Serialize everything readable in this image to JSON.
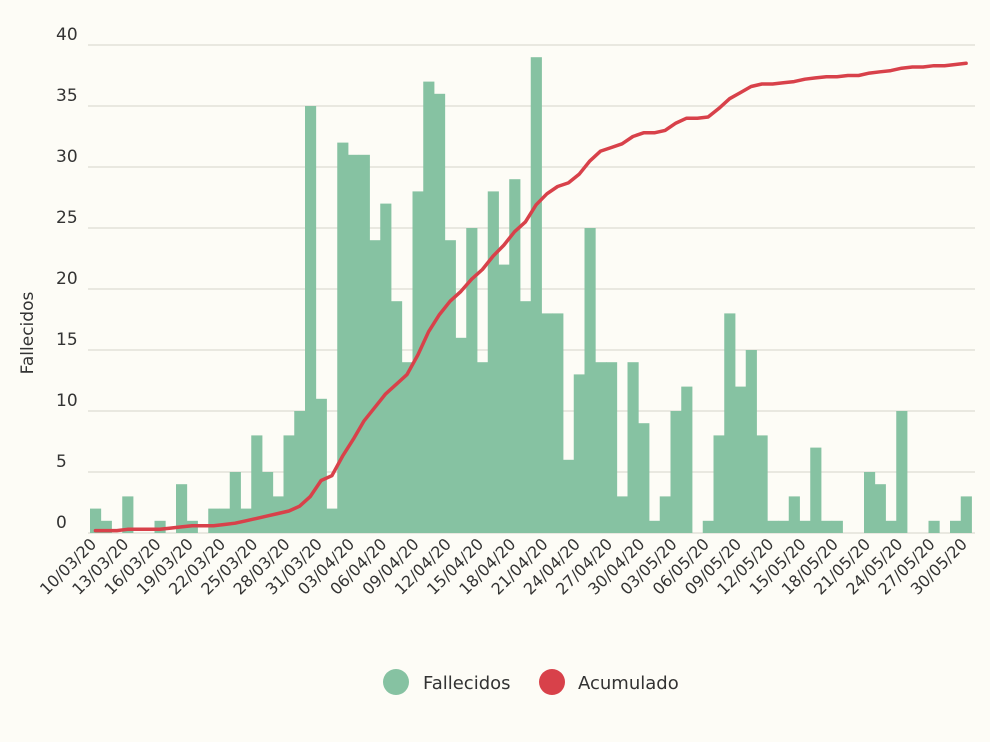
{
  "chart_data": {
    "type": "bar",
    "ylabel": "Fallecidos",
    "ylim": [
      0,
      40
    ],
    "yticks": [
      0,
      5,
      10,
      15,
      20,
      25,
      30,
      35,
      40
    ],
    "grid": true,
    "legend_position": "bottom",
    "start_date": "2020-03-10",
    "x_tick_labels": [
      "10/03/20",
      "13/03/20",
      "16/03/20",
      "19/03/20",
      "22/03/20",
      "25/03/20",
      "28/03/20",
      "31/03/20",
      "03/04/20",
      "06/04/20",
      "09/04/20",
      "12/04/20",
      "15/04/20",
      "18/04/20",
      "21/04/20",
      "24/04/20",
      "27/04/20",
      "30/04/20",
      "03/05/20",
      "06/05/20",
      "09/05/20",
      "12/05/20",
      "15/05/20",
      "18/05/20",
      "21/05/20",
      "24/05/20",
      "27/05/20",
      "30/05/20"
    ],
    "series": [
      {
        "name": "Fallecidos",
        "type": "bar",
        "color": "#86c2a2",
        "values": [
          2,
          1,
          0,
          3,
          0,
          0,
          1,
          0,
          4,
          1,
          0,
          2,
          2,
          5,
          2,
          8,
          5,
          3,
          8,
          10,
          35,
          11,
          2,
          32,
          31,
          31,
          24,
          27,
          19,
          14,
          28,
          37,
          36,
          24,
          16,
          25,
          14,
          28,
          22,
          29,
          19,
          39,
          18,
          18,
          6,
          13,
          25,
          14,
          14,
          3,
          14,
          9,
          1,
          3,
          10,
          12,
          0,
          1,
          8,
          18,
          12,
          15,
          8,
          1,
          1,
          3,
          1,
          7,
          1,
          1,
          0,
          0,
          5,
          4,
          1,
          10,
          0,
          0,
          1,
          0,
          1,
          3
        ]
      },
      {
        "name": "Acumulado",
        "type": "line",
        "color": "#d8414a",
        "values_scaled": [
          0.2,
          0.2,
          0.2,
          0.3,
          0.3,
          0.3,
          0.3,
          0.4,
          0.5,
          0.6,
          0.6,
          0.6,
          0.7,
          0.8,
          1.0,
          1.2,
          1.4,
          1.6,
          1.8,
          2.2,
          3.0,
          4.3,
          4.7,
          6.3,
          7.7,
          9.2,
          10.3,
          11.4,
          12.2,
          13.0,
          14.6,
          16.5,
          17.9,
          19.0,
          19.8,
          20.8,
          21.6,
          22.7,
          23.6,
          24.7,
          25.5,
          26.9,
          27.8,
          28.4,
          28.7,
          29.4,
          30.5,
          31.3,
          31.6,
          31.9,
          32.5,
          32.8,
          32.8,
          33.0,
          33.6,
          34.0,
          34.0,
          34.1,
          34.8,
          35.6,
          36.1,
          36.6,
          36.8,
          36.8,
          36.9,
          37.0,
          37.2,
          37.3,
          37.4,
          37.4,
          37.5,
          37.5,
          37.7,
          37.8,
          37.9,
          38.1,
          38.2,
          38.2,
          38.3,
          38.3,
          38.4,
          38.5
        ]
      }
    ],
    "legend": [
      {
        "label": "Fallecidos",
        "color": "#86c2a2"
      },
      {
        "label": "Acumulado",
        "color": "#d8414a"
      }
    ]
  }
}
